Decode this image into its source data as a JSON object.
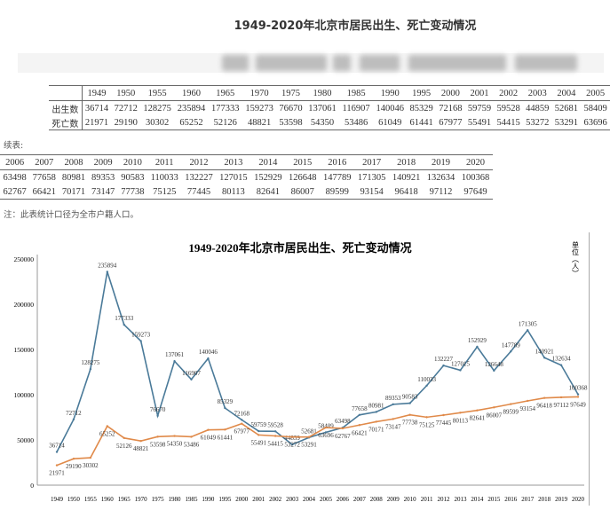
{
  "title": "1949-2020年北京市居民出生、死亡变动情况",
  "table1": {
    "row_labels": [
      "出生数",
      "死亡数"
    ],
    "years": [
      "1949",
      "1950",
      "1955",
      "1960",
      "1965",
      "1970",
      "1975",
      "1980",
      "1985",
      "1990",
      "1995",
      "2000",
      "2001",
      "2002",
      "2003",
      "2004",
      "2005"
    ],
    "births": [
      "36714",
      "72712",
      "128275",
      "235894",
      "177333",
      "159273",
      "76670",
      "137061",
      "116907",
      "140046",
      "85329",
      "72168",
      "59759",
      "59528",
      "44859",
      "52681",
      "58409"
    ],
    "deaths": [
      "21971",
      "29190",
      "30302",
      "65252",
      "52126",
      "48821",
      "53598",
      "54350",
      "53486",
      "61049",
      "61441",
      "67977",
      "55491",
      "54415",
      "53272",
      "53291",
      "63696"
    ]
  },
  "continued_label": "续表:",
  "table2": {
    "years": [
      "2006",
      "2007",
      "2008",
      "2009",
      "2010",
      "2011",
      "2012",
      "2013",
      "2014",
      "2015",
      "2016",
      "2017",
      "2018",
      "2019",
      "2020"
    ],
    "births": [
      "63498",
      "77658",
      "80981",
      "89353",
      "90583",
      "110033",
      "132227",
      "127015",
      "152929",
      "126648",
      "147789",
      "171305",
      "140921",
      "132634",
      "100368"
    ],
    "deaths": [
      "62767",
      "66421",
      "70171",
      "73147",
      "77738",
      "75125",
      "77445",
      "80113",
      "82641",
      "86007",
      "89599",
      "93154",
      "96418",
      "97112",
      "97649"
    ]
  },
  "note": "注：此表统计口径为全市户籍人口。",
  "chart_data": {
    "type": "line",
    "title": "1949-2020年北京市居民出生、死亡变动情况",
    "unit_label": "单位（人）",
    "categories": [
      "1949",
      "1950",
      "1955",
      "1960",
      "1965",
      "1970",
      "1975",
      "1980",
      "1985",
      "1990",
      "1995",
      "2000",
      "2001",
      "2002",
      "2003",
      "2004",
      "2005",
      "2006",
      "2007",
      "2008",
      "2009",
      "2010",
      "2011",
      "2012",
      "2013",
      "2014",
      "2015",
      "2016",
      "2017",
      "2018",
      "2019",
      "2020"
    ],
    "ylim": [
      0,
      250000
    ],
    "yticks": [
      0,
      50000,
      100000,
      150000,
      200000,
      250000
    ],
    "grid": false,
    "series": [
      {
        "color": "#4a7a99",
        "values": [
          36714,
          72712,
          128275,
          235894,
          177333,
          159273,
          76670,
          137061,
          116907,
          140046,
          85329,
          72168,
          59759,
          59528,
          44859,
          52681,
          58409,
          63498,
          77658,
          80981,
          89353,
          90583,
          110033,
          132227,
          127015,
          152929,
          126648,
          147789,
          171305,
          140921,
          132634,
          100368
        ]
      },
      {
        "color": "#e08a4a",
        "values": [
          21971,
          29190,
          30302,
          65252,
          52126,
          48821,
          53598,
          54350,
          53486,
          61049,
          61441,
          67977,
          55491,
          54415,
          53272,
          53291,
          63696,
          62767,
          66421,
          70171,
          73147,
          77738,
          75125,
          77445,
          80113,
          82641,
          86007,
          89599,
          93154,
          96418,
          97112,
          97649
        ]
      }
    ]
  }
}
